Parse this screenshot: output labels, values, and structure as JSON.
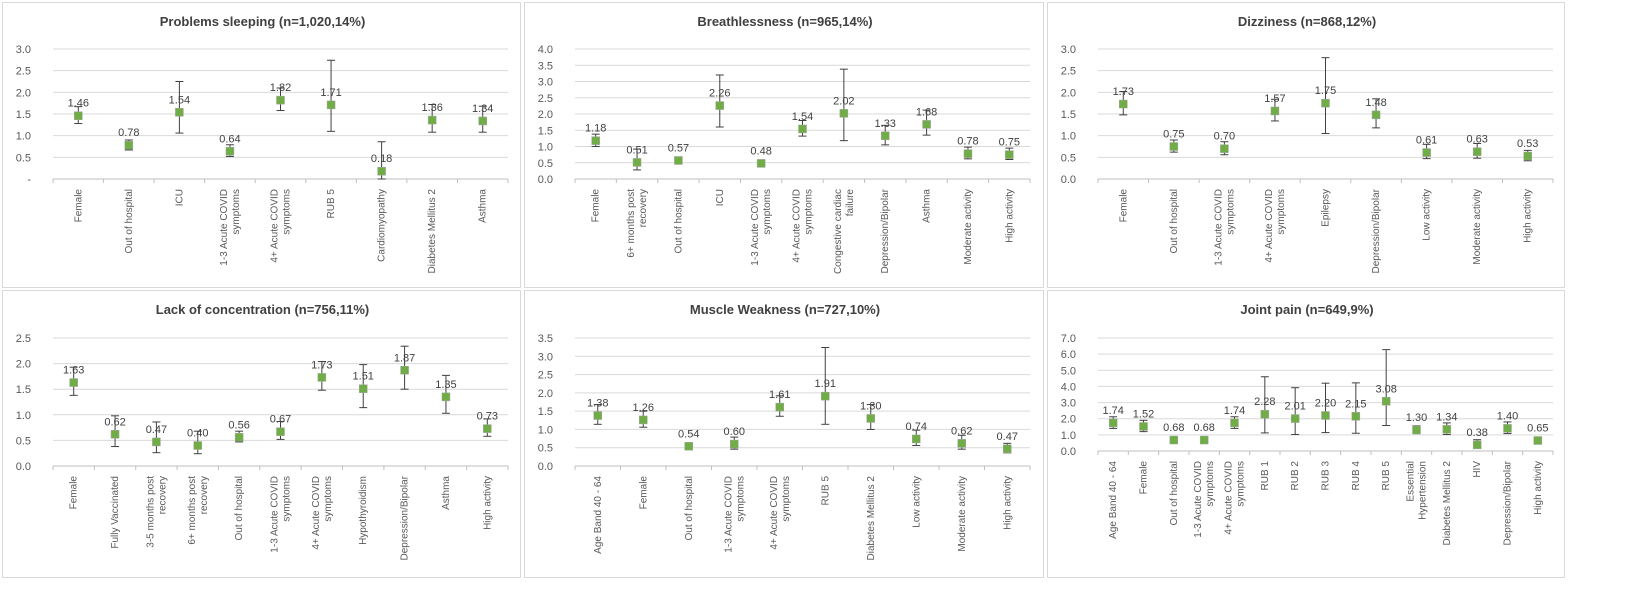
{
  "colors": {
    "marker": "#70ad47",
    "error_bar": "#404040",
    "grid": "#d9d9d9"
  },
  "chart_data": [
    {
      "type": "scatter",
      "title": "Problems sleeping (n=1,020,14%)",
      "categories": [
        "Female",
        "Out of hospital",
        "ICU",
        "1-3 Acute COVID symptoms",
        "4+ Acute COVID symptoms",
        "RUB 5",
        "Cardiomyopathy",
        "Diabetes Mellitus 2",
        "Asthma"
      ],
      "values": [
        1.46,
        0.78,
        1.54,
        0.64,
        1.82,
        1.71,
        0.18,
        1.36,
        1.34
      ],
      "data_labels": [
        "1.46",
        "0.78",
        "1.54",
        "0.64",
        "1.82",
        "1.71",
        "0.18",
        "1.36",
        "1.34"
      ],
      "error_low": [
        1.28,
        0.67,
        1.06,
        0.52,
        1.58,
        1.1,
        0.0,
        1.08,
        1.08
      ],
      "error_high": [
        1.67,
        0.9,
        2.25,
        0.79,
        2.1,
        2.74,
        0.86,
        1.72,
        1.68
      ],
      "ylim": [
        0,
        3.0
      ],
      "yticks": [
        0,
        0.5,
        1.0,
        1.5,
        2.0,
        2.5,
        3.0
      ],
      "ytick_labels": [
        "-",
        "0.5",
        "1.0",
        "1.5",
        "2.0",
        "2.5",
        "3.0"
      ],
      "grid": true
    },
    {
      "type": "scatter",
      "title": "Breathlessness (n=965,14%)",
      "categories": [
        "Female",
        "6+ months post recovery",
        "Out of hospital",
        "ICU",
        "1-3 Acute COVID symptoms",
        "4+ Acute COVID symptoms",
        "Congestive cardiac failure",
        "Depression/Bipolar",
        "Asthma",
        "Moderate activity",
        "High activity"
      ],
      "values": [
        1.18,
        0.51,
        0.57,
        2.26,
        0.48,
        1.54,
        2.02,
        1.33,
        1.68,
        0.78,
        0.75
      ],
      "data_labels": [
        "1.18",
        "0.51",
        "0.57",
        "2.26",
        "0.48",
        "1.54",
        "2.02",
        "1.33",
        "1.68",
        "0.78",
        "0.75"
      ],
      "error_low": [
        1.0,
        0.28,
        0.5,
        1.6,
        0.4,
        1.32,
        1.18,
        1.05,
        1.35,
        0.62,
        0.6
      ],
      "error_high": [
        1.38,
        0.92,
        0.65,
        3.2,
        0.58,
        1.8,
        3.38,
        1.65,
        2.12,
        0.98,
        0.95
      ],
      "ylim": [
        0,
        4.0
      ],
      "yticks": [
        0,
        0.5,
        1.0,
        1.5,
        2.0,
        2.5,
        3.0,
        3.5,
        4.0
      ],
      "ytick_labels": [
        "0.0",
        "0.5",
        "1.0",
        "1.5",
        "2.0",
        "2.5",
        "3.0",
        "3.5",
        "4.0"
      ],
      "grid": true
    },
    {
      "type": "scatter",
      "title": "Dizziness (n=868,12%)",
      "categories": [
        "Female",
        "Out of hospital",
        "1-3 Acute COVID symptoms",
        "4+ Acute COVID symptoms",
        "Epilepsy",
        "Depression/Bipolar",
        "Low activity",
        "Moderate activity",
        "High activity"
      ],
      "values": [
        1.73,
        0.75,
        0.7,
        1.57,
        1.75,
        1.48,
        0.61,
        0.63,
        0.53
      ],
      "data_labels": [
        "1.73",
        "0.75",
        "0.70",
        "1.57",
        "1.75",
        "1.48",
        "0.61",
        "0.63",
        "0.53"
      ],
      "error_low": [
        1.48,
        0.62,
        0.56,
        1.34,
        1.05,
        1.18,
        0.47,
        0.48,
        0.42
      ],
      "error_high": [
        2.02,
        0.9,
        0.86,
        1.84,
        2.8,
        1.85,
        0.8,
        0.82,
        0.66
      ],
      "ylim": [
        0,
        3.0
      ],
      "yticks": [
        0,
        0.5,
        1.0,
        1.5,
        2.0,
        2.5,
        3.0
      ],
      "ytick_labels": [
        "0.0",
        "0.5",
        "1.0",
        "1.5",
        "2.0",
        "2.5",
        "3.0"
      ],
      "grid": true
    },
    {
      "type": "scatter",
      "title": "Lack of concentration (n=756,11%)",
      "categories": [
        "Female",
        "Fully Vaccinated",
        "3-5 months post recovery",
        "6+ months post recovery",
        "Out of hospital",
        "1-3 Acute COVID symptoms",
        "4+ Acute COVID symptoms",
        "Hypothyroidism",
        "Depression/Bipolar",
        "Asthma",
        "High activity"
      ],
      "values": [
        1.63,
        0.62,
        0.47,
        0.4,
        0.56,
        0.67,
        1.73,
        1.51,
        1.87,
        1.35,
        0.73
      ],
      "data_labels": [
        "1.63",
        "0.62",
        "0.47",
        "0.40",
        "0.56",
        "0.67",
        "1.73",
        "1.51",
        "1.87",
        "1.35",
        "0.73"
      ],
      "error_low": [
        1.38,
        0.38,
        0.26,
        0.24,
        0.47,
        0.52,
        1.48,
        1.14,
        1.5,
        1.03,
        0.58
      ],
      "error_high": [
        1.93,
        0.98,
        0.86,
        0.68,
        0.68,
        0.87,
        2.04,
        1.98,
        2.34,
        1.77,
        0.92
      ],
      "ylim": [
        0,
        2.5
      ],
      "yticks": [
        0,
        0.5,
        1.0,
        1.5,
        2.0,
        2.5
      ],
      "ytick_labels": [
        "0.0",
        "0.5",
        "1.0",
        "1.5",
        "2.0",
        "2.5"
      ],
      "grid": true
    },
    {
      "type": "scatter",
      "title": "Muscle Weakness (n=727,10%)",
      "categories": [
        "Age Band 40 - 64",
        "Female",
        "Out of hospital",
        "1-3 Acute COVID symptoms",
        "4+ Acute COVID symptoms",
        "RUB 5",
        "Diabetes Mellitus 2",
        "Low activity",
        "Moderate activity",
        "High activity"
      ],
      "values": [
        1.38,
        1.26,
        0.54,
        0.6,
        1.61,
        1.91,
        1.3,
        0.74,
        0.62,
        0.47
      ],
      "data_labels": [
        "1.38",
        "1.26",
        "0.54",
        "0.60",
        "1.61",
        "1.91",
        "1.30",
        "0.74",
        "0.62",
        "0.47"
      ],
      "error_low": [
        1.14,
        1.06,
        0.46,
        0.46,
        1.36,
        1.14,
        1.0,
        0.56,
        0.46,
        0.36
      ],
      "error_high": [
        1.68,
        1.5,
        0.64,
        0.79,
        1.92,
        3.24,
        1.68,
        0.98,
        0.84,
        0.62
      ],
      "ylim": [
        0,
        3.5
      ],
      "yticks": [
        0,
        0.5,
        1.0,
        1.5,
        2.0,
        2.5,
        3.0,
        3.5
      ],
      "ytick_labels": [
        "0.0",
        "0.5",
        "1.0",
        "1.5",
        "2.0",
        "2.5",
        "3.0",
        "3.5"
      ],
      "grid": true
    },
    {
      "type": "scatter",
      "title": "Joint pain (n=649,9%)",
      "categories": [
        "Age Band 40 - 64",
        "Female",
        "Out of hospital",
        "1-3 Acute COVID symptoms",
        "4+ Acute COVID symptoms",
        "RUB 1",
        "RUB 2",
        "RUB 3",
        "RUB 4",
        "RUB 5",
        "Essential Hypertension",
        "Diabetes Mellitus 2",
        "HIV",
        "Depression/Bipolar",
        "High activity"
      ],
      "values": [
        1.74,
        1.52,
        0.68,
        0.68,
        1.74,
        2.28,
        2.01,
        2.2,
        2.15,
        3.08,
        1.3,
        1.34,
        0.38,
        1.4,
        0.65
      ],
      "data_labels": [
        "1.74",
        "1.52",
        "0.68",
        "0.68",
        "1.74",
        "2.28",
        "2.01",
        "2.20",
        "2.15",
        "3.08",
        "1.30",
        "1.34",
        "0.38",
        "1.40",
        "0.65"
      ],
      "error_low": [
        1.4,
        1.2,
        0.58,
        0.54,
        1.4,
        1.12,
        1.02,
        1.14,
        1.1,
        1.58,
        1.08,
        1.02,
        0.2,
        1.08,
        0.5
      ],
      "error_high": [
        2.12,
        1.9,
        0.8,
        0.86,
        2.12,
        4.6,
        3.92,
        4.2,
        4.22,
        6.28,
        1.56,
        1.74,
        0.7,
        1.8,
        0.84
      ],
      "ylim": [
        0,
        7.0
      ],
      "yticks": [
        0,
        1.0,
        2.0,
        3.0,
        4.0,
        5.0,
        6.0,
        7.0
      ],
      "ytick_labels": [
        "0.0",
        "1.0",
        "2.0",
        "3.0",
        "4.0",
        "5.0",
        "6.0",
        "7.0"
      ],
      "grid": true
    }
  ]
}
